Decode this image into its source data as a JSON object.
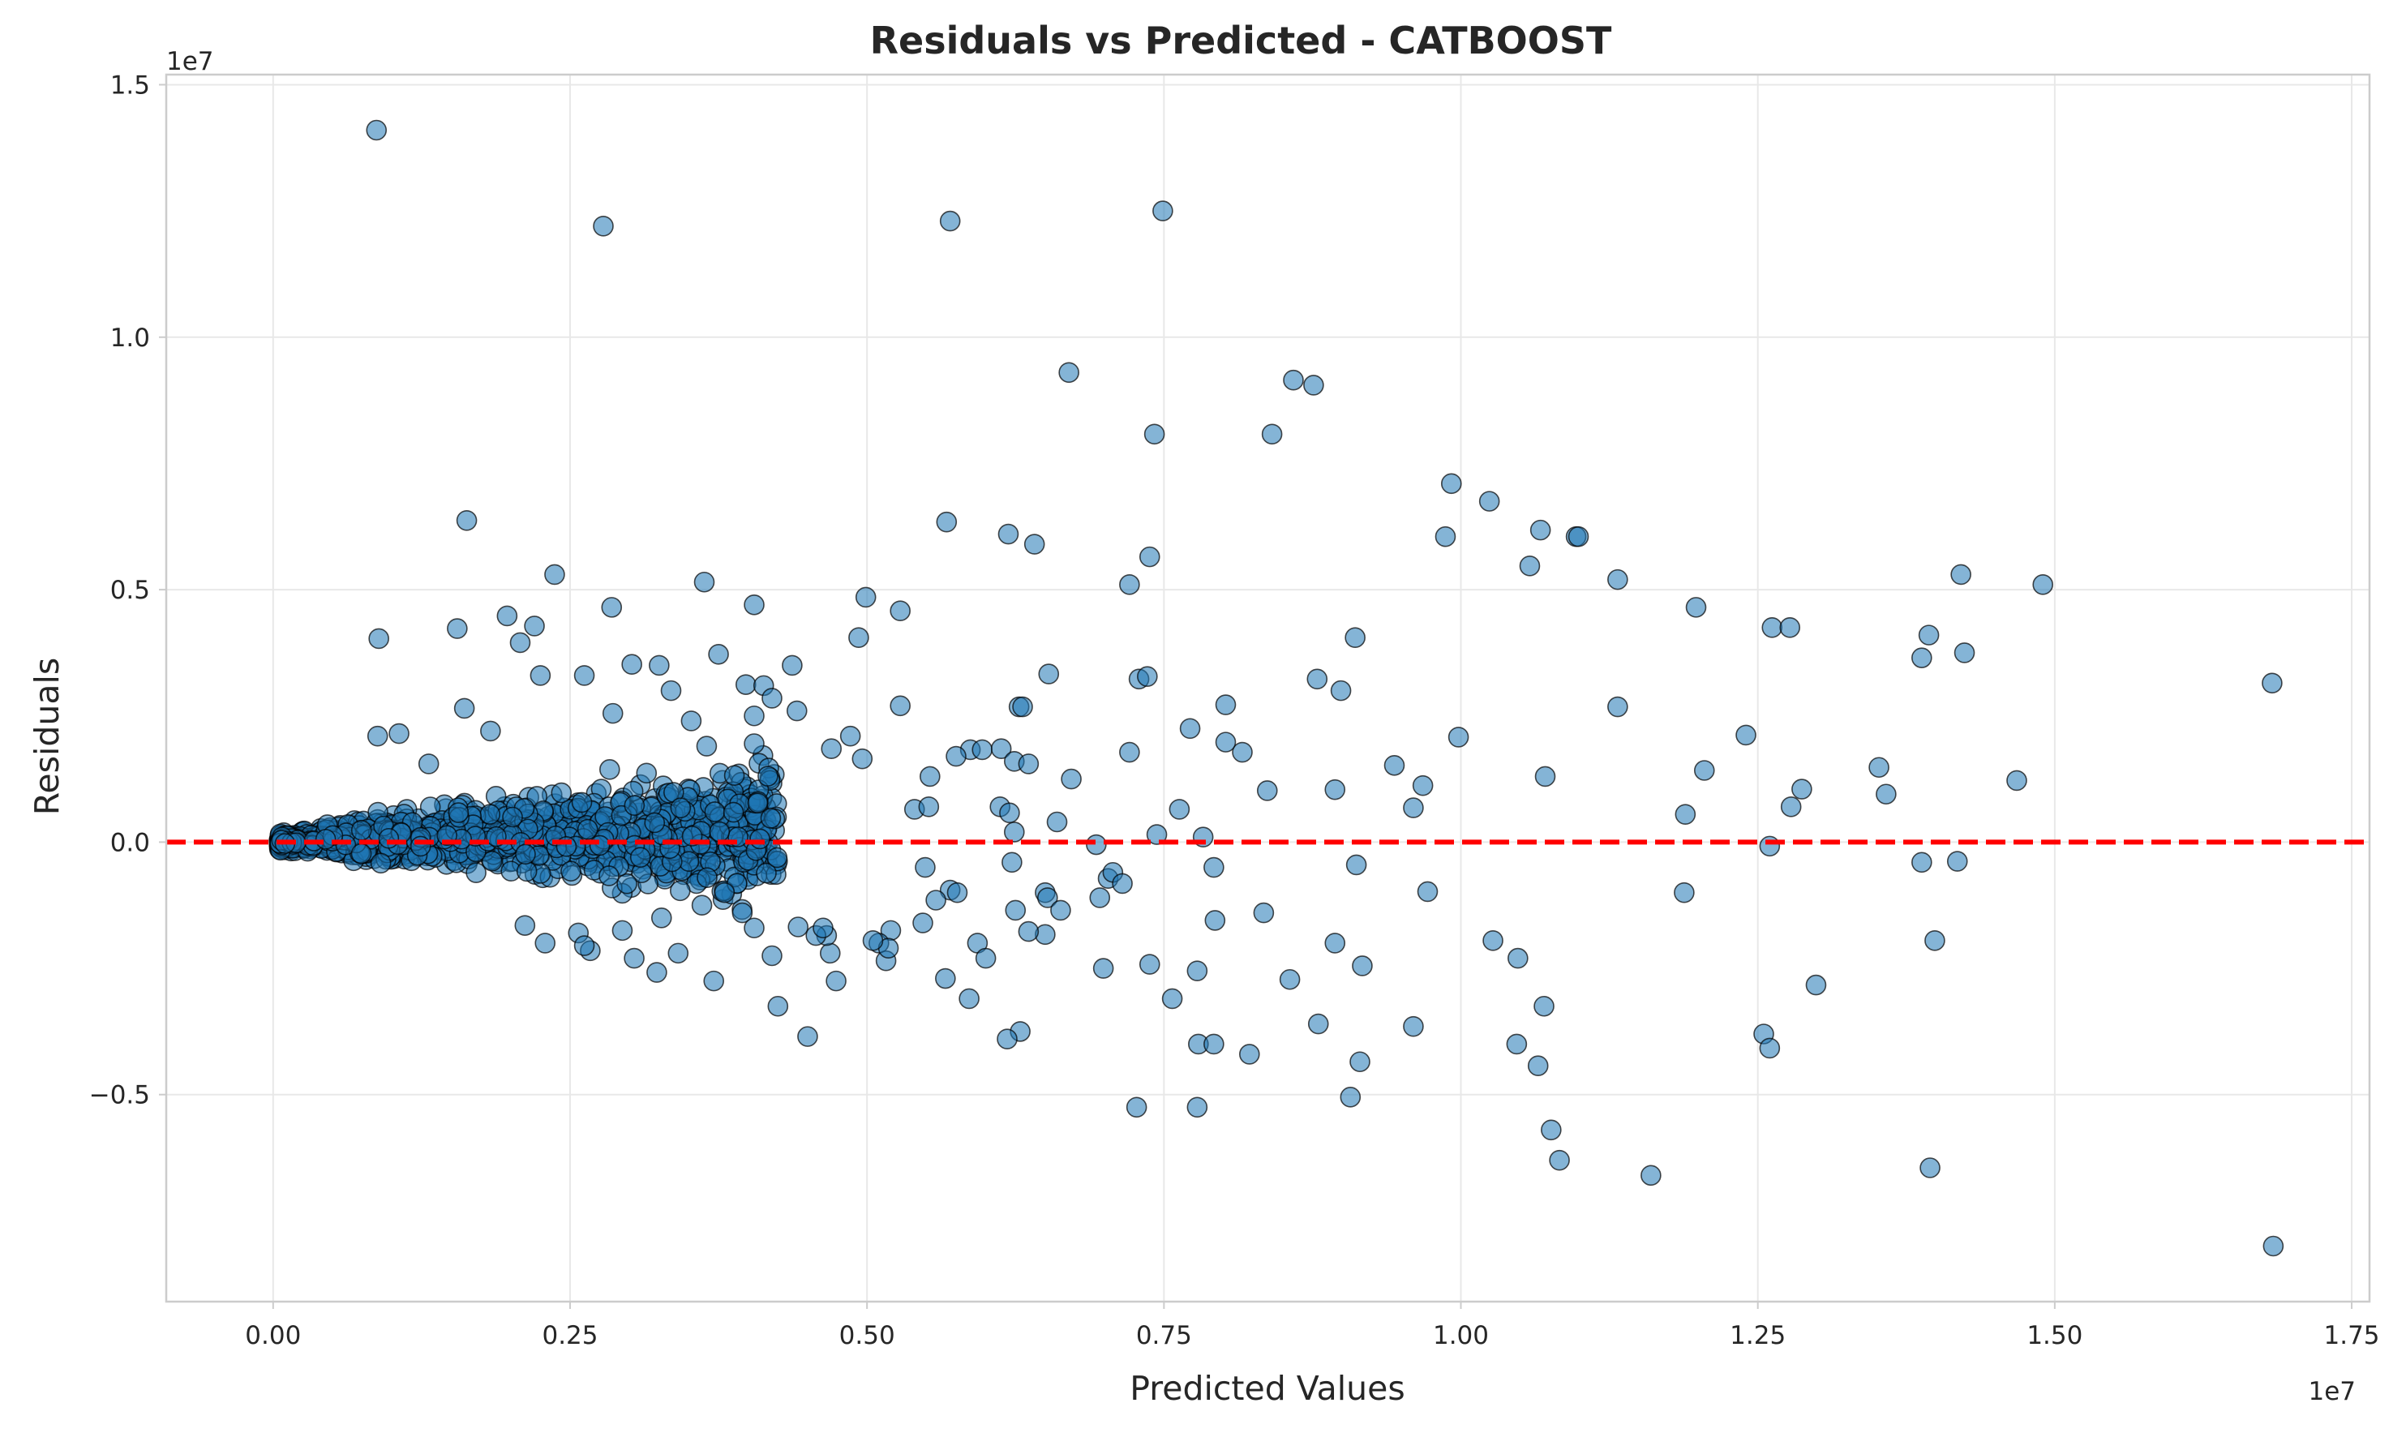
{
  "chart_data": {
    "type": "scatter",
    "title": "Residuals vs Predicted - CATBOOST",
    "xlabel": "Predicted Values",
    "ylabel": "Residuals",
    "x_offset_label": "1e7",
    "y_offset_label": "1e7",
    "xlim": [
      -0.09,
      1.765
    ],
    "ylim": [
      -0.91,
      1.52
    ],
    "x_ticks": [
      0.0,
      0.25,
      0.5,
      0.75,
      1.0,
      1.25,
      1.5,
      1.75
    ],
    "x_tick_labels": [
      "0.00",
      "0.25",
      "0.50",
      "0.75",
      "1.00",
      "1.25",
      "1.50",
      "1.75"
    ],
    "y_ticks": [
      -0.5,
      0.0,
      0.5,
      1.0,
      1.5
    ],
    "y_tick_labels": [
      "−0.5",
      "0.0",
      "0.5",
      "1.0",
      "1.5"
    ],
    "grid": true,
    "point_color": "#1f77b4",
    "reference_line": {
      "y": 0.0,
      "color": "#ff0000",
      "style": "dashed"
    },
    "series": [
      {
        "points": [
          [
            0.087,
            1.41
          ],
          [
            0.278,
            1.22
          ],
          [
            0.57,
            1.23
          ],
          [
            0.749,
            1.25
          ],
          [
            0.67,
            0.93
          ],
          [
            0.859,
            0.915
          ],
          [
            0.876,
            0.905
          ],
          [
            0.742,
            0.808
          ],
          [
            0.841,
            0.808
          ],
          [
            0.163,
            0.637
          ],
          [
            0.567,
            0.634
          ],
          [
            0.619,
            0.61
          ],
          [
            0.641,
            0.59
          ],
          [
            0.992,
            0.71
          ],
          [
            1.024,
            0.675
          ],
          [
            0.987,
            0.605
          ],
          [
            1.067,
            0.618
          ],
          [
            1.097,
            0.605
          ],
          [
            1.099,
            0.605
          ],
          [
            1.058,
            0.547
          ],
          [
            1.132,
            0.52
          ],
          [
            1.421,
            0.53
          ],
          [
            1.49,
            0.51
          ],
          [
            0.738,
            0.565
          ],
          [
            0.721,
            0.51
          ],
          [
            0.237,
            0.53
          ],
          [
            0.363,
            0.515
          ],
          [
            0.499,
            0.485
          ],
          [
            0.285,
            0.465
          ],
          [
            0.405,
            0.47
          ],
          [
            0.528,
            0.458
          ],
          [
            0.155,
            0.423
          ],
          [
            0.089,
            0.403
          ],
          [
            0.197,
            0.448
          ],
          [
            0.22,
            0.428
          ],
          [
            0.493,
            0.405
          ],
          [
            0.208,
            0.395
          ],
          [
            0.375,
            0.372
          ],
          [
            0.325,
            0.35
          ],
          [
            0.437,
            0.35
          ],
          [
            1.198,
            0.465
          ],
          [
            1.262,
            0.425
          ],
          [
            1.277,
            0.425
          ],
          [
            1.394,
            0.41
          ],
          [
            1.388,
            0.365
          ],
          [
            1.424,
            0.375
          ],
          [
            0.911,
            0.405
          ],
          [
            0.879,
            0.323
          ],
          [
            0.899,
            0.3
          ],
          [
            0.729,
            0.323
          ],
          [
            0.736,
            0.328
          ],
          [
            0.653,
            0.333
          ],
          [
            0.398,
            0.312
          ],
          [
            0.413,
            0.31
          ],
          [
            0.42,
            0.285
          ],
          [
            0.302,
            0.352
          ],
          [
            0.262,
            0.33
          ],
          [
            0.225,
            0.33
          ],
          [
            0.335,
            0.3
          ],
          [
            1.683,
            0.315
          ],
          [
            1.132,
            0.268
          ],
          [
            0.802,
            0.272
          ],
          [
            0.628,
            0.268
          ],
          [
            0.631,
            0.268
          ],
          [
            0.528,
            0.27
          ],
          [
            1.24,
            0.212
          ],
          [
            0.998,
            0.208
          ],
          [
            0.772,
            0.225
          ],
          [
            0.161,
            0.265
          ],
          [
            0.183,
            0.22
          ],
          [
            0.286,
            0.255
          ],
          [
            0.352,
            0.24
          ],
          [
            0.405,
            0.25
          ],
          [
            0.441,
            0.26
          ],
          [
            0.106,
            0.215
          ],
          [
            0.088,
            0.21
          ],
          [
            0.131,
            0.155
          ],
          [
            1.205,
            0.142
          ],
          [
            1.352,
            0.148
          ],
          [
            0.944,
            0.152
          ],
          [
            0.816,
            0.178
          ],
          [
            0.802,
            0.198
          ],
          [
            0.721,
            0.178
          ],
          [
            0.587,
            0.183
          ],
          [
            0.597,
            0.183
          ],
          [
            0.613,
            0.185
          ],
          [
            0.405,
            0.195
          ],
          [
            0.365,
            0.19
          ],
          [
            0.47,
            0.185
          ],
          [
            0.496,
            0.165
          ],
          [
            0.486,
            0.21
          ],
          [
            0.575,
            0.17
          ],
          [
            0.624,
            0.16
          ],
          [
            0.636,
            0.155
          ],
          [
            0.553,
            0.13
          ],
          [
            1.358,
            0.095
          ],
          [
            1.468,
            0.122
          ],
          [
            1.287,
            0.105
          ],
          [
            1.071,
            0.13
          ],
          [
            0.968,
            0.112
          ],
          [
            0.894,
            0.104
          ],
          [
            0.837,
            0.102
          ],
          [
            0.672,
            0.125
          ],
          [
            0.763,
            0.065
          ],
          [
            1.278,
            0.07
          ],
          [
            0.96,
            0.068
          ],
          [
            1.189,
            0.055
          ],
          [
            0.612,
            0.07
          ],
          [
            0.62,
            0.058
          ],
          [
            0.54,
            0.065
          ],
          [
            0.552,
            0.07
          ],
          [
            0.624,
            0.02
          ],
          [
            0.66,
            0.04
          ],
          [
            0.744,
            0.015
          ],
          [
            0.783,
            0.01
          ],
          [
            0.693,
            -0.005
          ],
          [
            0.912,
            -0.045
          ],
          [
            0.792,
            -0.05
          ],
          [
            0.703,
            -0.072
          ],
          [
            1.26,
            -0.008
          ],
          [
            1.388,
            -0.04
          ],
          [
            1.418,
            -0.038
          ],
          [
            0.972,
            -0.098
          ],
          [
            1.188,
            -0.1
          ],
          [
            0.707,
            -0.06
          ],
          [
            0.715,
            -0.082
          ],
          [
            0.57,
            -0.095
          ],
          [
            0.576,
            -0.1
          ],
          [
            0.65,
            -0.1
          ],
          [
            0.652,
            -0.11
          ],
          [
            0.558,
            -0.115
          ],
          [
            0.622,
            -0.04
          ],
          [
            0.696,
            -0.11
          ],
          [
            0.549,
            -0.05
          ],
          [
            0.663,
            -0.135
          ],
          [
            0.793,
            -0.155
          ],
          [
            0.834,
            -0.14
          ],
          [
            0.593,
            -0.2
          ],
          [
            0.6,
            -0.23
          ],
          [
            0.65,
            -0.183
          ],
          [
            0.625,
            -0.135
          ],
          [
            0.636,
            -0.177
          ],
          [
            0.547,
            -0.16
          ],
          [
            0.52,
            -0.175
          ],
          [
            0.51,
            -0.2
          ],
          [
            0.516,
            -0.235
          ],
          [
            0.518,
            -0.21
          ],
          [
            0.469,
            -0.22
          ],
          [
            0.42,
            -0.225
          ],
          [
            0.505,
            -0.195
          ],
          [
            0.466,
            -0.185
          ],
          [
            1.399,
            -0.195
          ],
          [
            1.299,
            -0.283
          ],
          [
            1.048,
            -0.23
          ],
          [
            1.027,
            -0.195
          ],
          [
            0.894,
            -0.2
          ],
          [
            0.917,
            -0.245
          ],
          [
            0.856,
            -0.272
          ],
          [
            0.699,
            -0.25
          ],
          [
            0.738,
            -0.242
          ],
          [
            0.778,
            -0.255
          ],
          [
            0.566,
            -0.27
          ],
          [
            0.586,
            -0.31
          ],
          [
            0.757,
            -0.31
          ],
          [
            0.474,
            -0.275
          ],
          [
            0.425,
            -0.325
          ],
          [
            0.371,
            -0.275
          ],
          [
            0.629,
            -0.375
          ],
          [
            0.618,
            -0.39
          ],
          [
            0.45,
            -0.385
          ],
          [
            1.07,
            -0.325
          ],
          [
            0.88,
            -0.36
          ],
          [
            0.96,
            -0.365
          ],
          [
            1.255,
            -0.38
          ],
          [
            1.26,
            -0.408
          ],
          [
            1.047,
            -0.4
          ],
          [
            1.065,
            -0.443
          ],
          [
            0.915,
            -0.435
          ],
          [
            0.779,
            -0.4
          ],
          [
            0.792,
            -0.4
          ],
          [
            0.822,
            -0.42
          ],
          [
            0.907,
            -0.505
          ],
          [
            0.727,
            -0.525
          ],
          [
            0.778,
            -0.525
          ],
          [
            1.076,
            -0.57
          ],
          [
            1.083,
            -0.63
          ],
          [
            1.16,
            -0.66
          ],
          [
            1.395,
            -0.645
          ],
          [
            1.684,
            -0.8
          ],
          [
            0.229,
            -0.2
          ],
          [
            0.257,
            -0.18
          ],
          [
            0.304,
            -0.23
          ],
          [
            0.341,
            -0.22
          ],
          [
            0.323,
            -0.258
          ],
          [
            0.267,
            -0.215
          ],
          [
            0.294,
            -0.175
          ],
          [
            0.327,
            -0.15
          ],
          [
            0.361,
            -0.125
          ],
          [
            0.395,
            -0.14
          ],
          [
            0.405,
            -0.17
          ],
          [
            0.442,
            -0.168
          ],
          [
            0.457,
            -0.185
          ],
          [
            0.463,
            -0.17
          ],
          [
            0.38,
            -0.1
          ],
          [
            0.212,
            -0.165
          ],
          [
            0.262,
            -0.205
          ]
        ]
      }
    ]
  }
}
